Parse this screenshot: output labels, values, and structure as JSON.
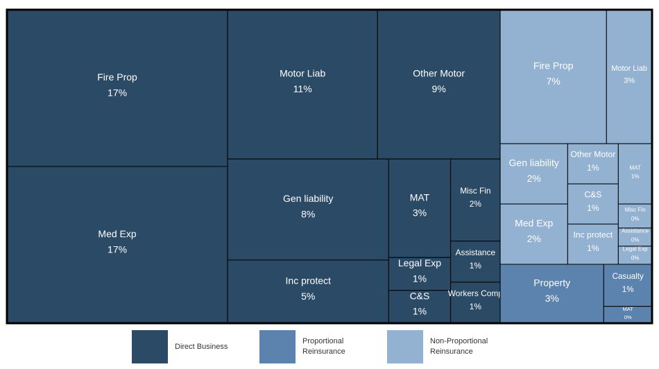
{
  "chart_data": {
    "type": "treemap",
    "series": [
      {
        "name": "Direct Business",
        "color": "#2b4a66",
        "categories": [
          "Fire Prop",
          "Med Exp",
          "Motor Liab",
          "Other Motor",
          "Gen liability",
          "Inc protect",
          "MAT",
          "Legal Exp",
          "C&S",
          "Misc Fin",
          "Assistance",
          "Workers Comp"
        ],
        "values": [
          17,
          17,
          11,
          9,
          8,
          5,
          3,
          1,
          1,
          2,
          1,
          1
        ],
        "value_labels": [
          "17%",
          "17%",
          "11%",
          "9%",
          "8%",
          "5%",
          "3%",
          "1%",
          "1%",
          "2%",
          "1%",
          "1%"
        ]
      },
      {
        "name": "Proportional Reinsurance",
        "color": "#5b83ad",
        "categories": [
          "Property",
          "Casualty",
          "MAT"
        ],
        "values": [
          3,
          1,
          0.4
        ],
        "value_labels": [
          "3%",
          "1%",
          "0%"
        ]
      },
      {
        "name": "Non-Proportional Reinsurance",
        "color": "#93b1d1",
        "categories": [
          "Fire Prop",
          "Motor Liab",
          "Gen liability",
          "Med Exp",
          "Other Motor",
          "C&S",
          "Inc protect",
          "MAT",
          "Misc Fin",
          "Assistance",
          "Legal Exp"
        ],
        "values": [
          7,
          3,
          2,
          2,
          1,
          1,
          1,
          1,
          0.4,
          0.3,
          0.3
        ],
        "value_labels": [
          "7%",
          "3%",
          "2%",
          "2%",
          "1%",
          "1%",
          "1%",
          "1%",
          "0%",
          "0%",
          "0%"
        ]
      }
    ]
  }
}
